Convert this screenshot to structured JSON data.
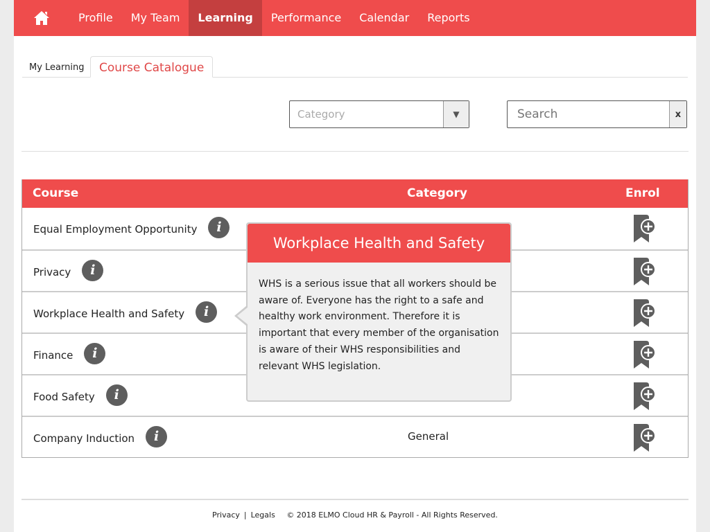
{
  "nav": {
    "home_icon": "home-icon",
    "items": [
      {
        "label": "Profile"
      },
      {
        "label": "My Team"
      },
      {
        "label": "Learning",
        "active": true
      },
      {
        "label": "Performance"
      },
      {
        "label": "Calendar"
      },
      {
        "label": "Reports"
      }
    ]
  },
  "tabs": {
    "my_learning": "My Learning",
    "course_catalogue": "Course Catalogue"
  },
  "filters": {
    "category_placeholder": "Category",
    "search_placeholder": "Search",
    "clear_label": "x"
  },
  "table": {
    "headers": {
      "course": "Course",
      "category": "Category",
      "enrol": "Enrol"
    },
    "rows": [
      {
        "course": "Equal Employment Opportunity",
        "category": ""
      },
      {
        "course": "Privacy",
        "category": ""
      },
      {
        "course": "Workplace Health and Safety",
        "category": ""
      },
      {
        "course": "Finance",
        "category": ""
      },
      {
        "course": "Food Safety",
        "category": ""
      },
      {
        "course": "Company Induction",
        "category": "General"
      }
    ]
  },
  "tooltip": {
    "title": "Workplace Health and Safety",
    "body": "WHS is a serious issue that all workers should be aware of. Everyone has the right to a safe and healthy work environment. Therefore it is important that every member of the organisation is aware of their WHS responsibilities and relevant WHS legislation."
  },
  "footer": {
    "privacy": "Privacy",
    "sep": "|",
    "legals": "Legals",
    "copyright": "© 2018 ELMO Cloud HR & Payroll - All Rights Reserved."
  },
  "colors": {
    "brand": "#ef4c4c",
    "active_nav": "#c43f3f",
    "icon": "#5e5e5e"
  }
}
